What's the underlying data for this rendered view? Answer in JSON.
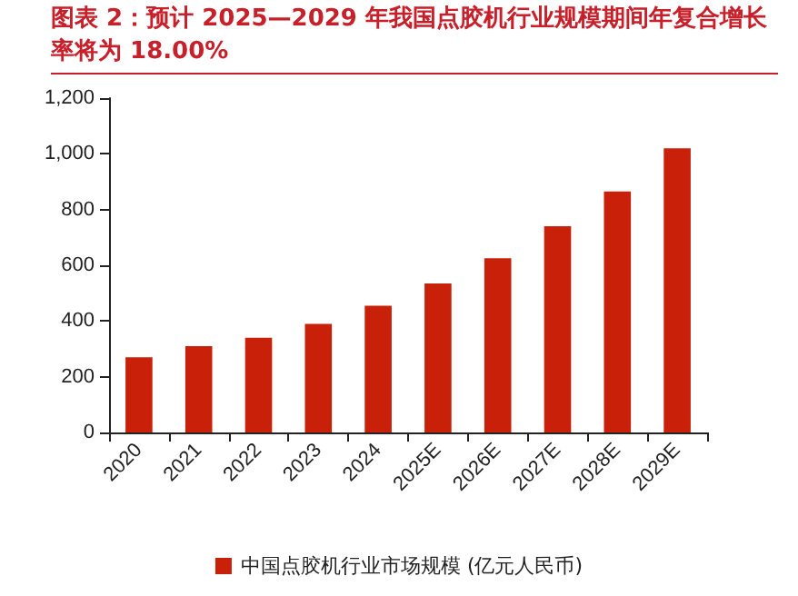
{
  "chart_data": {
    "type": "bar",
    "title": "图表 2：预计 2025—2029 年我国点胶机行业规模期间年复合增长率将为 18.00%",
    "categories": [
      "2020",
      "2021",
      "2022",
      "2023",
      "2024",
      "2025E",
      "2026E",
      "2027E",
      "2028E",
      "2029E"
    ],
    "series": [
      {
        "name": "中国点胶机行业市场规模 (亿元人民币)",
        "color": "#c9200a",
        "values": [
          270,
          310,
          340,
          390,
          455,
          535,
          625,
          740,
          865,
          1020
        ]
      }
    ],
    "ylim": [
      0,
      1200
    ],
    "yticks": [
      0,
      200,
      400,
      600,
      800,
      {
        "value": 1000,
        "label": "1,000"
      },
      {
        "value": 1200,
        "label": "1,200"
      }
    ],
    "grid": false,
    "legend": "bottom"
  }
}
